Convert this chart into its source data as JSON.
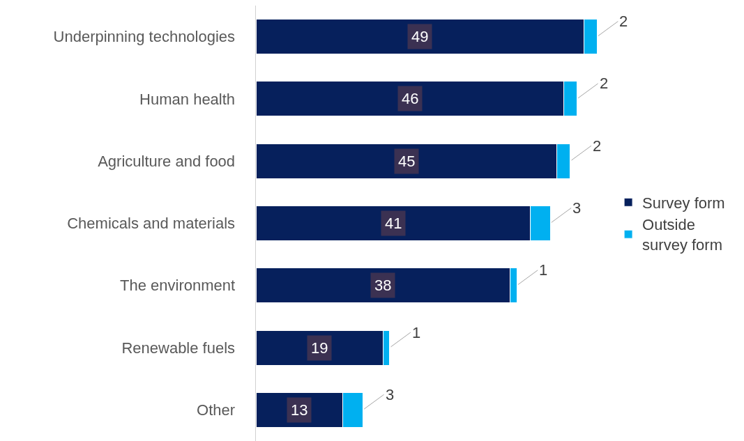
{
  "chart_data": {
    "type": "bar",
    "orientation": "horizontal",
    "stacked": true,
    "data_labels": true,
    "legend": "right",
    "grid": false,
    "categories": [
      "Underpinning technologies",
      "Human health",
      "Agriculture and food",
      "Chemicals and materials",
      "The environment",
      "Renewable fuels",
      "Other"
    ],
    "series": [
      {
        "name": "Survey form",
        "color": "#06205c",
        "values": [
          49,
          46,
          45,
          41,
          38,
          19,
          13
        ]
      },
      {
        "name": "Outside survey form",
        "color": "#00b0f0",
        "values": [
          2,
          2,
          2,
          3,
          1,
          1,
          3
        ]
      }
    ]
  }
}
